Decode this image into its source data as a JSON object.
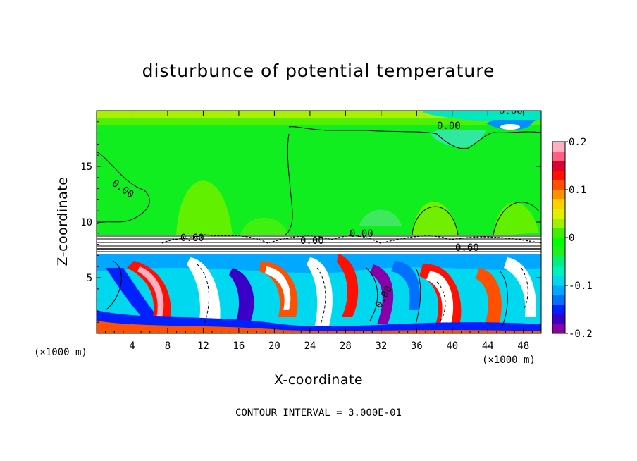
{
  "chart_data": {
    "type": "heatmap",
    "title": "disturbunce of potential temperature",
    "xlabel": "X-coordinate",
    "ylabel": "Z-coordinate",
    "x_unit_label": "(×1000 m)",
    "xlim": [
      0,
      50
    ],
    "ylim": [
      0,
      20
    ],
    "x_ticks": [
      "4",
      "8",
      "12",
      "16",
      "20",
      "24",
      "28",
      "32",
      "36",
      "40",
      "44",
      "48"
    ],
    "x_tick_values": [
      4,
      8,
      12,
      16,
      20,
      24,
      28,
      32,
      36,
      40,
      44,
      48
    ],
    "y_ticks": [
      "5",
      "10",
      "15"
    ],
    "y_tick_values": [
      5,
      10,
      15
    ],
    "colorbar": {
      "range": [
        -0.2,
        0.2
      ],
      "tick_labels": [
        "0.2",
        "0.1",
        "0",
        "-0.1",
        "-0.2"
      ],
      "tick_values": [
        0.2,
        0.1,
        0,
        -0.1,
        -0.2
      ],
      "colors": [
        "#8a00a8",
        "#3a00c8",
        "#0020ff",
        "#0070ff",
        "#00a8ff",
        "#00d8f0",
        "#00f0c0",
        "#00f080",
        "#20f020",
        "#00ff00",
        "#40f000",
        "#a0f000",
        "#e0f000",
        "#ffd000",
        "#ff9000",
        "#ff5000",
        "#ff1000",
        "#e00030",
        "#ff6080",
        "#ffb0c0"
      ]
    },
    "contour_labels": [
      "0.00",
      "0.00",
      "0.00",
      "0.60",
      "0.00",
      "0.00",
      "0.00",
      "0.60"
    ],
    "caption": "CONTOUR INTERVAL = 3.000E-01",
    "grid": false,
    "legend_placement": "right"
  }
}
